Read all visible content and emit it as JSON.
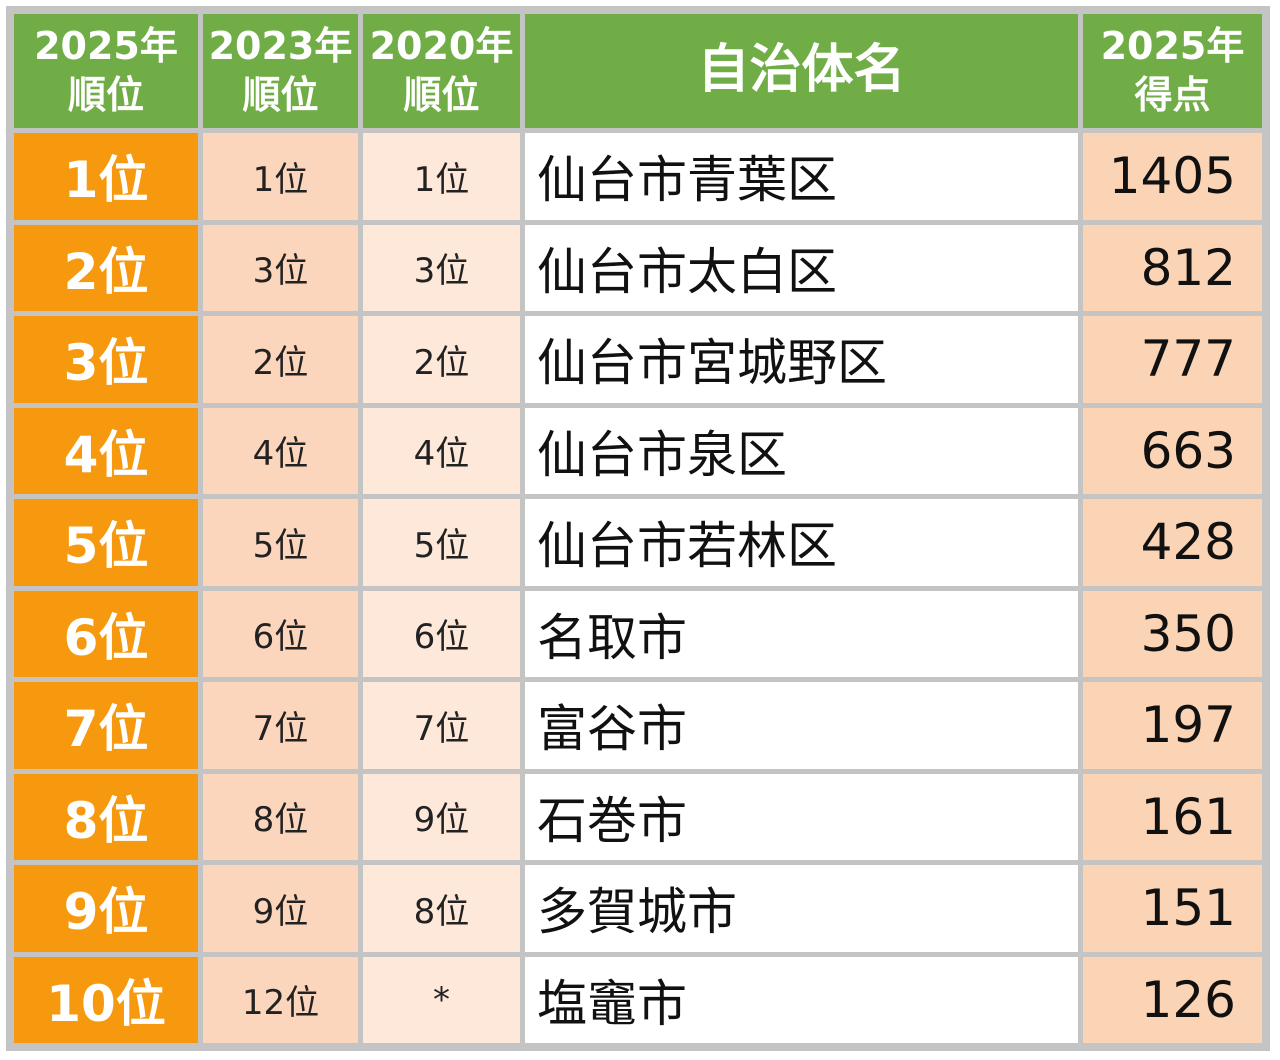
{
  "table": {
    "header": [
      [
        "2025年",
        "順位"
      ],
      [
        "2023年",
        "順位"
      ],
      [
        "2020年",
        "順位"
      ],
      [
        "自治体名"
      ],
      [
        "2025年",
        "得点"
      ]
    ],
    "rows": [
      [
        "1位",
        "1位",
        "1位",
        "仙台市青葉区",
        1405
      ],
      [
        "2位",
        "3位",
        "3位",
        "仙台市太白区",
        812
      ],
      [
        "3位",
        "2位",
        "2位",
        "仙台市宮城野区",
        777
      ],
      [
        "4位",
        "4位",
        "4位",
        "仙台市泉区",
        663
      ],
      [
        "5位",
        "5位",
        "5位",
        "仙台市若林区",
        428
      ],
      [
        "6位",
        "6位",
        "6位",
        "名取市",
        350
      ],
      [
        "7位",
        "7位",
        "7位",
        "富谷市",
        197
      ],
      [
        "8位",
        "8位",
        "9位",
        "石巻市",
        161
      ],
      [
        "9位",
        "9位",
        "8位",
        "多賀城市",
        151
      ],
      [
        "10位",
        "12位",
        "*",
        "塩竈市",
        126
      ]
    ]
  }
}
